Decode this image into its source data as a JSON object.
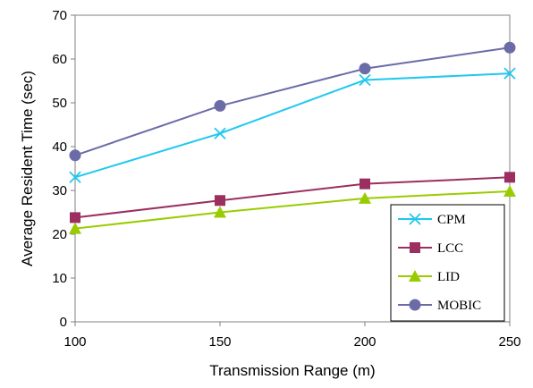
{
  "chart_data": {
    "type": "line",
    "x": [
      100,
      150,
      200,
      250
    ],
    "xlabel": "Transmission Range (m)",
    "ylabel": "Average Resident Time (sec)",
    "xlim": [
      100,
      250
    ],
    "ylim": [
      0,
      70
    ],
    "xticks": [
      "100",
      "150",
      "200",
      "250"
    ],
    "yticks": [
      "0",
      "10",
      "20",
      "30",
      "40",
      "50",
      "60",
      "70"
    ],
    "grid": false,
    "legend_position": "bottom-right",
    "series": [
      {
        "name": "CPM",
        "values": [
          33,
          43,
          55.2,
          56.7
        ],
        "color": "#1fc8f0",
        "marker": "x"
      },
      {
        "name": "LCC",
        "values": [
          23.8,
          27.7,
          31.5,
          33
        ],
        "color": "#9b2f5f",
        "marker": "square"
      },
      {
        "name": "LID",
        "values": [
          21.3,
          25,
          28.2,
          29.8
        ],
        "color": "#99cc00",
        "marker": "triangle"
      },
      {
        "name": "MOBIC",
        "values": [
          38,
          49.3,
          57.8,
          62.6
        ],
        "color": "#6b6ba8",
        "marker": "circle"
      }
    ]
  }
}
